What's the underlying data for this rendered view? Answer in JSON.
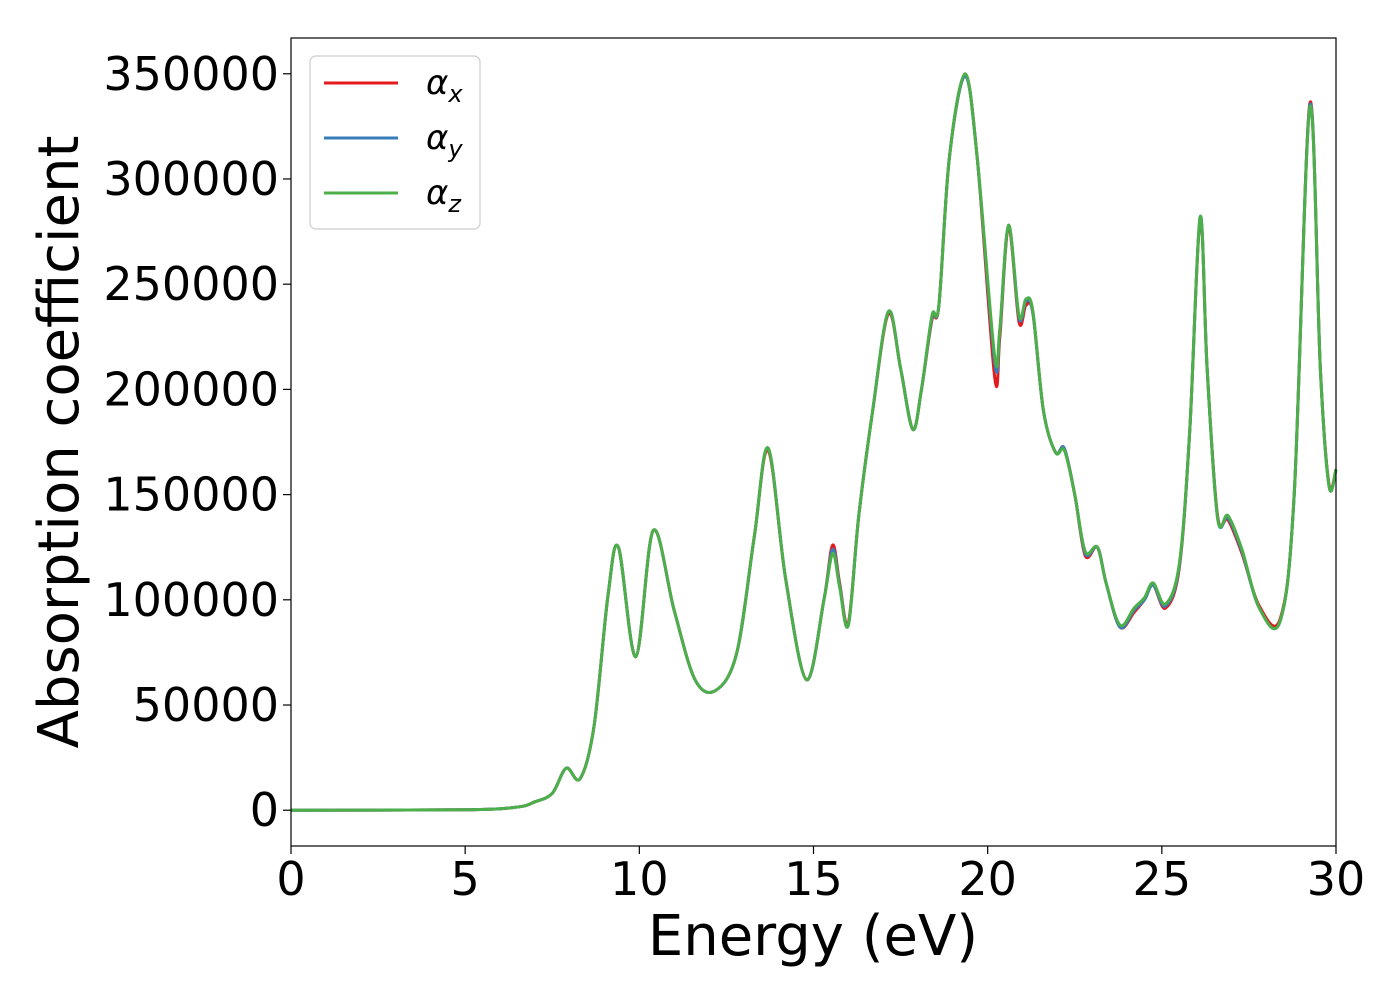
{
  "chart_data": {
    "type": "line",
    "title": "",
    "xlabel": "Energy (eV)",
    "ylabel": "Absorption coefficient",
    "xlim": [
      0,
      30
    ],
    "ylim": [
      -17000,
      367000
    ],
    "xticks": [
      "0",
      "5",
      "10",
      "15",
      "20",
      "25",
      "30"
    ],
    "yticks": [
      "0",
      "50000",
      "100000",
      "150000",
      "200000",
      "250000",
      "300000",
      "350000"
    ],
    "grid": false,
    "legend_position": "top-left",
    "x": [
      0,
      5,
      6.5,
      7,
      7.5,
      7.9,
      8.3,
      8.7,
      9.1,
      9.4,
      9.9,
      10.4,
      11,
      11.6,
      12.2,
      12.8,
      13.3,
      13.7,
      14.2,
      14.8,
      15.3,
      15.55,
      15.75,
      16,
      16.3,
      16.7,
      17.15,
      17.5,
      17.85,
      18.1,
      18.4,
      18.6,
      18.9,
      19.35,
      19.7,
      20.2,
      20.35,
      20.6,
      20.9,
      21.1,
      21.3,
      21.6,
      21.95,
      22.2,
      22.5,
      22.8,
      23.15,
      23.4,
      23.8,
      24.2,
      24.5,
      24.75,
      25.1,
      25.5,
      25.8,
      26.1,
      26.3,
      26.6,
      26.9,
      27.3,
      27.8,
      28.4,
      28.8,
      29.25,
      29.55,
      29.8,
      30
    ],
    "series": [
      {
        "name": "x",
        "color": "#e41a1c",
        "values": [
          0,
          200,
          1500,
          4000,
          8000,
          20000,
          15000,
          40000,
          102000,
          125000,
          73000,
          133000,
          95000,
          62000,
          57000,
          75000,
          130000,
          171000,
          110000,
          62000,
          100000,
          126000,
          108000,
          89000,
          140000,
          190000,
          236000,
          210000,
          181000,
          200000,
          233000,
          240000,
          310000,
          349000,
          310000,
          206000,
          225000,
          277000,
          232000,
          240000,
          236000,
          190000,
          170000,
          172000,
          150000,
          121000,
          125000,
          108000,
          87000,
          94000,
          100000,
          107000,
          96000,
          115000,
          180000,
          281000,
          210000,
          140000,
          138000,
          122000,
          97000,
          91000,
          150000,
          336000,
          210000,
          155000,
          162000
        ]
      },
      {
        "name": "y",
        "color": "#377eb8",
        "values": [
          0,
          200,
          1500,
          4000,
          8000,
          20000,
          15000,
          40000,
          102000,
          125000,
          73000,
          133000,
          95000,
          62000,
          57000,
          75000,
          130000,
          172000,
          110000,
          62000,
          100000,
          124000,
          107000,
          88000,
          140000,
          190000,
          237000,
          210000,
          181000,
          200000,
          234000,
          240000,
          310000,
          349000,
          310000,
          213000,
          228000,
          278000,
          234000,
          242000,
          236000,
          190000,
          170000,
          172000,
          150000,
          122000,
          125000,
          108000,
          87000,
          95000,
          100000,
          107000,
          97000,
          116000,
          180000,
          282000,
          210000,
          139000,
          139000,
          123000,
          96000,
          90000,
          150000,
          335000,
          210000,
          154000,
          162000
        ]
      },
      {
        "name": "z",
        "color": "#4daf4a",
        "values": [
          0,
          200,
          1500,
          4000,
          8000,
          20000,
          15000,
          40000,
          102000,
          125000,
          73000,
          133000,
          95000,
          62000,
          57000,
          75000,
          130000,
          172000,
          110000,
          62000,
          100000,
          122000,
          106000,
          88000,
          140000,
          190000,
          237000,
          210000,
          181000,
          200000,
          235000,
          240000,
          310000,
          350000,
          310000,
          216000,
          229000,
          278000,
          235000,
          243000,
          237000,
          190000,
          170000,
          171000,
          150000,
          123000,
          125000,
          108000,
          88000,
          96000,
          101000,
          108000,
          98000,
          117000,
          180000,
          282000,
          210000,
          139000,
          140000,
          124000,
          96000,
          90000,
          150000,
          334000,
          210000,
          154000,
          162000
        ]
      }
    ],
    "legend": [
      {
        "symbol": "α",
        "sub": "x",
        "color": "#e41a1c"
      },
      {
        "symbol": "α",
        "sub": "y",
        "color": "#377eb8"
      },
      {
        "symbol": "α",
        "sub": "z",
        "color": "#4daf4a"
      }
    ]
  }
}
